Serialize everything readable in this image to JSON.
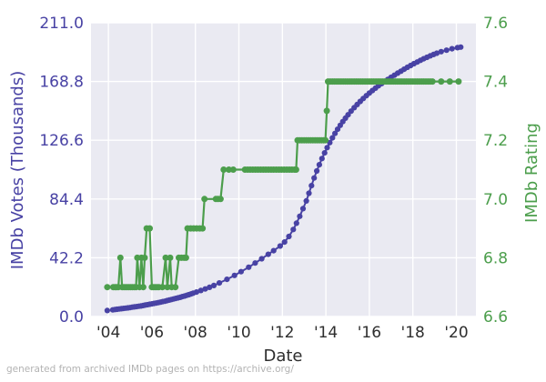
{
  "caption": "generated from archived IMDb pages on https://archive.org/",
  "chart_data": {
    "type": "line",
    "title": "",
    "x_axis": {
      "label": "Date",
      "range": [
        2003.2,
        2020.9
      ],
      "tick_years": [
        2004,
        2006,
        2008,
        2010,
        2012,
        2014,
        2016,
        2018,
        2020
      ],
      "tick_labels": [
        "'04",
        "'06",
        "'08",
        "'10",
        "'12",
        "'14",
        "'16",
        "'18",
        "'20"
      ],
      "tick_color": "#2e2e2e"
    },
    "y_left": {
      "label": "IMDb Votes (Thousands)",
      "range": [
        0,
        211
      ],
      "ticks": [
        0,
        42.2,
        84.4,
        126.6,
        168.8,
        211
      ],
      "tick_labels": [
        "0.0",
        "42.2",
        "84.4",
        "126.6",
        "168.8",
        "211.0"
      ],
      "color": "#4842a4"
    },
    "y_right": {
      "label": "IMDb Rating",
      "range": [
        6.6,
        7.6
      ],
      "ticks": [
        6.6,
        6.8,
        7.0,
        7.2,
        7.4,
        7.6
      ],
      "tick_labels": [
        "6.6",
        "6.8",
        "7.0",
        "7.2",
        "7.4",
        "7.6"
      ],
      "color": "#4c9e4c"
    },
    "style": {
      "figure_bg": "#ffffff",
      "plot_bg": "#eaeaf2",
      "grid_color": "#ffffff",
      "grid": true,
      "legend": "none",
      "caption_color": "#b3b3b3"
    },
    "series": [
      {
        "name": "IMDb Votes (Thousands)",
        "axis": "left",
        "color": "#4842a4",
        "marker_radius": 3.1,
        "line_width": 2,
        "line_start_index": 1,
        "points": [
          [
            2003.95,
            4.3
          ],
          [
            2004.2,
            4.8
          ],
          [
            2004.3,
            5.0
          ],
          [
            2004.4,
            5.2
          ],
          [
            2004.5,
            5.4
          ],
          [
            2004.6,
            5.6
          ],
          [
            2004.7,
            5.8
          ],
          [
            2004.8,
            6.0
          ],
          [
            2004.9,
            6.2
          ],
          [
            2005.0,
            6.4
          ],
          [
            2005.1,
            6.7
          ],
          [
            2005.2,
            6.9
          ],
          [
            2005.3,
            7.1
          ],
          [
            2005.4,
            7.4
          ],
          [
            2005.5,
            7.6
          ],
          [
            2005.6,
            7.9
          ],
          [
            2005.7,
            8.2
          ],
          [
            2005.8,
            8.5
          ],
          [
            2005.9,
            8.8
          ],
          [
            2006.0,
            9.1
          ],
          [
            2006.1,
            9.4
          ],
          [
            2006.2,
            9.7
          ],
          [
            2006.3,
            10.0
          ],
          [
            2006.4,
            10.3
          ],
          [
            2006.5,
            10.7
          ],
          [
            2006.6,
            11.0
          ],
          [
            2006.7,
            11.4
          ],
          [
            2006.8,
            11.8
          ],
          [
            2006.9,
            12.2
          ],
          [
            2007.0,
            12.6
          ],
          [
            2007.1,
            13.0
          ],
          [
            2007.2,
            13.4
          ],
          [
            2007.3,
            13.8
          ],
          [
            2007.4,
            14.3
          ],
          [
            2007.5,
            14.7
          ],
          [
            2007.6,
            15.2
          ],
          [
            2007.7,
            15.7
          ],
          [
            2007.8,
            16.2
          ],
          [
            2007.9,
            16.8
          ],
          [
            2008.05,
            17.6
          ],
          [
            2008.25,
            18.7
          ],
          [
            2008.45,
            19.8
          ],
          [
            2008.65,
            21.0
          ],
          [
            2008.85,
            22.3
          ],
          [
            2009.1,
            24.1
          ],
          [
            2009.45,
            26.7
          ],
          [
            2009.8,
            29.5
          ],
          [
            2010.1,
            32.2
          ],
          [
            2010.45,
            35.4
          ],
          [
            2010.75,
            38.4
          ],
          [
            2011.05,
            41.5
          ],
          [
            2011.35,
            44.7
          ],
          [
            2011.6,
            47.3
          ],
          [
            2011.9,
            50.6
          ],
          [
            2012.1,
            53.5
          ],
          [
            2012.3,
            57.5
          ],
          [
            2012.5,
            62.5
          ],
          [
            2012.65,
            67.0
          ],
          [
            2012.8,
            72.0
          ],
          [
            2012.95,
            77.5
          ],
          [
            2013.1,
            83.0
          ],
          [
            2013.22,
            88.5
          ],
          [
            2013.34,
            94.0
          ],
          [
            2013.46,
            99.5
          ],
          [
            2013.58,
            104.5
          ],
          [
            2013.7,
            109.0
          ],
          [
            2013.82,
            113.5
          ],
          [
            2013.94,
            117.5
          ],
          [
            2014.06,
            121.3
          ],
          [
            2014.18,
            124.9
          ],
          [
            2014.3,
            128.3
          ],
          [
            2014.42,
            131.5
          ],
          [
            2014.54,
            134.5
          ],
          [
            2014.66,
            137.3
          ],
          [
            2014.78,
            140.0
          ],
          [
            2014.9,
            142.5
          ],
          [
            2015.02,
            144.9
          ],
          [
            2015.16,
            147.5
          ],
          [
            2015.3,
            150.0
          ],
          [
            2015.44,
            152.3
          ],
          [
            2015.58,
            154.5
          ],
          [
            2015.72,
            156.6
          ],
          [
            2015.86,
            158.6
          ],
          [
            2016.0,
            160.5
          ],
          [
            2016.14,
            162.3
          ],
          [
            2016.28,
            164.0
          ],
          [
            2016.42,
            165.7
          ],
          [
            2016.56,
            167.3
          ],
          [
            2016.7,
            168.8
          ],
          [
            2016.85,
            170.3
          ],
          [
            2017.0,
            171.8
          ],
          [
            2017.15,
            173.3
          ],
          [
            2017.3,
            174.8
          ],
          [
            2017.45,
            176.2
          ],
          [
            2017.6,
            177.6
          ],
          [
            2017.75,
            179.0
          ],
          [
            2017.9,
            180.3
          ],
          [
            2018.05,
            181.6
          ],
          [
            2018.2,
            182.8
          ],
          [
            2018.35,
            184.0
          ],
          [
            2018.5,
            185.1
          ],
          [
            2018.65,
            186.2
          ],
          [
            2018.8,
            187.2
          ],
          [
            2018.95,
            188.2
          ],
          [
            2019.1,
            189.1
          ],
          [
            2019.3,
            190.2
          ],
          [
            2019.55,
            191.3
          ],
          [
            2019.8,
            192.3
          ],
          [
            2020.05,
            193.1
          ],
          [
            2020.2,
            193.5
          ]
        ]
      },
      {
        "name": "IMDb Rating",
        "axis": "right",
        "color": "#4c9e4c",
        "marker_radius": 3.5,
        "line_width": 2.2,
        "line_start_index": 1,
        "points": [
          [
            2003.95,
            6.7
          ],
          [
            2004.22,
            6.7
          ],
          [
            2004.3,
            6.7
          ],
          [
            2004.38,
            6.7
          ],
          [
            2004.46,
            6.7
          ],
          [
            2004.55,
            6.8
          ],
          [
            2004.63,
            6.7
          ],
          [
            2004.71,
            6.7
          ],
          [
            2004.79,
            6.7
          ],
          [
            2004.87,
            6.7
          ],
          [
            2004.95,
            6.7
          ],
          [
            2005.03,
            6.7
          ],
          [
            2005.11,
            6.7
          ],
          [
            2005.19,
            6.7
          ],
          [
            2005.27,
            6.7
          ],
          [
            2005.33,
            6.8
          ],
          [
            2005.43,
            6.7
          ],
          [
            2005.52,
            6.8
          ],
          [
            2005.6,
            6.7
          ],
          [
            2005.67,
            6.8
          ],
          [
            2005.76,
            6.9
          ],
          [
            2005.9,
            6.9
          ],
          [
            2006.0,
            6.7
          ],
          [
            2006.08,
            6.7
          ],
          [
            2006.16,
            6.7
          ],
          [
            2006.24,
            6.7
          ],
          [
            2006.32,
            6.7
          ],
          [
            2006.48,
            6.7
          ],
          [
            2006.63,
            6.8
          ],
          [
            2006.71,
            6.7
          ],
          [
            2006.84,
            6.8
          ],
          [
            2006.91,
            6.7
          ],
          [
            2007.08,
            6.7
          ],
          [
            2007.24,
            6.8
          ],
          [
            2007.36,
            6.8
          ],
          [
            2007.48,
            6.8
          ],
          [
            2007.57,
            6.8
          ],
          [
            2007.64,
            6.9
          ],
          [
            2007.78,
            6.9
          ],
          [
            2007.92,
            6.9
          ],
          [
            2008.06,
            6.9
          ],
          [
            2008.2,
            6.9
          ],
          [
            2008.33,
            6.9
          ],
          [
            2008.42,
            7.0
          ],
          [
            2008.94,
            7.0
          ],
          [
            2009.04,
            7.0
          ],
          [
            2009.16,
            7.0
          ],
          [
            2009.3,
            7.1
          ],
          [
            2009.54,
            7.1
          ],
          [
            2009.74,
            7.1
          ],
          [
            2010.28,
            7.1
          ],
          [
            2010.4,
            7.1
          ],
          [
            2010.52,
            7.1
          ],
          [
            2010.64,
            7.1
          ],
          [
            2010.76,
            7.1
          ],
          [
            2010.88,
            7.1
          ],
          [
            2011.0,
            7.1
          ],
          [
            2011.12,
            7.1
          ],
          [
            2011.24,
            7.1
          ],
          [
            2011.36,
            7.1
          ],
          [
            2011.48,
            7.1
          ],
          [
            2011.6,
            7.1
          ],
          [
            2011.72,
            7.1
          ],
          [
            2011.84,
            7.1
          ],
          [
            2011.96,
            7.1
          ],
          [
            2012.08,
            7.1
          ],
          [
            2012.2,
            7.1
          ],
          [
            2012.32,
            7.1
          ],
          [
            2012.44,
            7.1
          ],
          [
            2012.56,
            7.1
          ],
          [
            2012.63,
            7.1
          ],
          [
            2012.7,
            7.2
          ],
          [
            2012.8,
            7.2
          ],
          [
            2012.9,
            7.2
          ],
          [
            2013.0,
            7.2
          ],
          [
            2013.1,
            7.2
          ],
          [
            2013.2,
            7.2
          ],
          [
            2013.3,
            7.2
          ],
          [
            2013.4,
            7.2
          ],
          [
            2013.5,
            7.2
          ],
          [
            2013.6,
            7.2
          ],
          [
            2013.7,
            7.2
          ],
          [
            2013.8,
            7.2
          ],
          [
            2013.9,
            7.2
          ],
          [
            2013.98,
            7.2
          ],
          [
            2014.04,
            7.3
          ],
          [
            2014.1,
            7.4
          ],
          [
            2014.2,
            7.4
          ],
          [
            2014.3,
            7.4
          ],
          [
            2014.4,
            7.4
          ],
          [
            2014.5,
            7.4
          ],
          [
            2014.6,
            7.4
          ],
          [
            2014.7,
            7.4
          ],
          [
            2014.8,
            7.4
          ],
          [
            2014.9,
            7.4
          ],
          [
            2015.0,
            7.4
          ],
          [
            2015.1,
            7.4
          ],
          [
            2015.2,
            7.4
          ],
          [
            2015.3,
            7.4
          ],
          [
            2015.4,
            7.4
          ],
          [
            2015.5,
            7.4
          ],
          [
            2015.6,
            7.4
          ],
          [
            2015.7,
            7.4
          ],
          [
            2015.8,
            7.4
          ],
          [
            2015.9,
            7.4
          ],
          [
            2016.0,
            7.4
          ],
          [
            2016.1,
            7.4
          ],
          [
            2016.2,
            7.4
          ],
          [
            2016.3,
            7.4
          ],
          [
            2016.4,
            7.4
          ],
          [
            2016.5,
            7.4
          ],
          [
            2016.6,
            7.4
          ],
          [
            2016.7,
            7.4
          ],
          [
            2016.8,
            7.4
          ],
          [
            2016.9,
            7.4
          ],
          [
            2017.0,
            7.4
          ],
          [
            2017.1,
            7.4
          ],
          [
            2017.2,
            7.4
          ],
          [
            2017.3,
            7.4
          ],
          [
            2017.4,
            7.4
          ],
          [
            2017.5,
            7.4
          ],
          [
            2017.6,
            7.4
          ],
          [
            2017.7,
            7.4
          ],
          [
            2017.8,
            7.4
          ],
          [
            2017.9,
            7.4
          ],
          [
            2018.0,
            7.4
          ],
          [
            2018.1,
            7.4
          ],
          [
            2018.2,
            7.4
          ],
          [
            2018.3,
            7.4
          ],
          [
            2018.4,
            7.4
          ],
          [
            2018.5,
            7.4
          ],
          [
            2018.6,
            7.4
          ],
          [
            2018.7,
            7.4
          ],
          [
            2018.8,
            7.4
          ],
          [
            2018.9,
            7.4
          ],
          [
            2019.3,
            7.4
          ],
          [
            2019.7,
            7.4
          ],
          [
            2020.1,
            7.4
          ]
        ]
      }
    ]
  }
}
